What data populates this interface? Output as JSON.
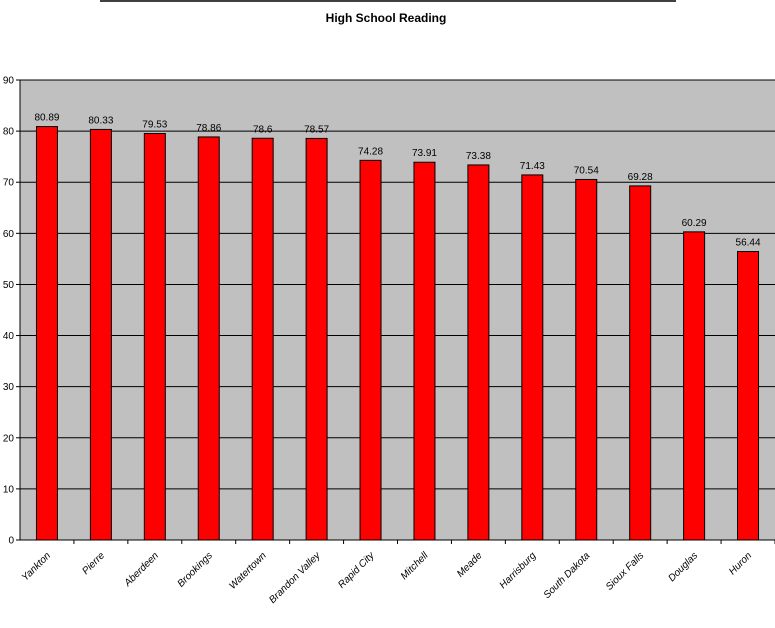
{
  "chart_data": {
    "type": "bar",
    "title": "High School Reading",
    "categories": [
      "Yankton",
      "Pierre",
      "Aberdeen",
      "Brookings",
      "Watertown",
      "Brandon Valley",
      "Rapid City",
      "Mitchell",
      "Meade",
      "Harrisburg",
      "South Dakota",
      "Sioux Falls",
      "Douglas",
      "Huron"
    ],
    "values": [
      80.89,
      80.33,
      79.53,
      78.86,
      78.6,
      78.57,
      74.28,
      73.91,
      73.38,
      71.43,
      70.54,
      69.28,
      60.29,
      56.44
    ],
    "value_labels": [
      "80.89",
      "80.33",
      "79.53",
      "78.86",
      "78.6",
      "78.57",
      "74.28",
      "73.91",
      "73.38",
      "71.43",
      "70.54",
      "69.28",
      "60.29",
      "56.44"
    ],
    "ylim": [
      0,
      90
    ],
    "yticks": [
      0,
      10,
      20,
      30,
      40,
      50,
      60,
      70,
      80,
      90
    ],
    "xlabel": "",
    "ylabel": "",
    "grid": true,
    "legend": "none",
    "colors": {
      "bar": "#ff0000",
      "bar_edge": "#000000",
      "plot_background": "#c0c0c0",
      "gridline": "#000000"
    }
  }
}
